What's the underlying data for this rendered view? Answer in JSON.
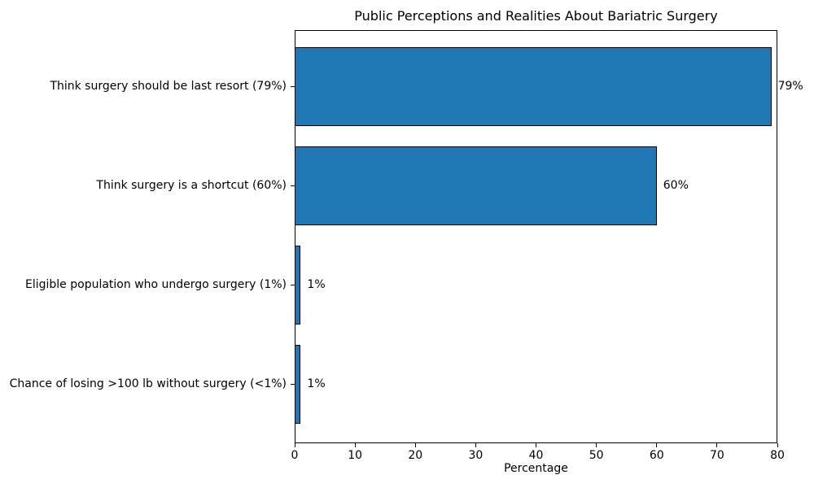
{
  "chart_data": {
    "type": "bar",
    "orientation": "horizontal",
    "title": "Public Perceptions and Realities About Bariatric Surgery",
    "xlabel": "Percentage",
    "ylabel": "",
    "categories": [
      "Think surgery should be last resort (79%)",
      "Think surgery is a shortcut (60%)",
      "Eligible population who undergo surgery (1%)",
      "Chance of losing >100 lb without surgery (<1%)"
    ],
    "values": [
      79,
      60,
      1,
      1
    ],
    "bar_labels": [
      "79%",
      "60%",
      "1%",
      "1%"
    ],
    "xlim": [
      0,
      80
    ],
    "xticks": [
      0,
      10,
      20,
      30,
      40,
      50,
      60,
      70,
      80
    ],
    "grid": false,
    "legend_position": "none",
    "bar_color": "#1f77b4",
    "bar_edge_color": "#000000",
    "text_color": "#000000",
    "background_color": "#ffffff"
  }
}
